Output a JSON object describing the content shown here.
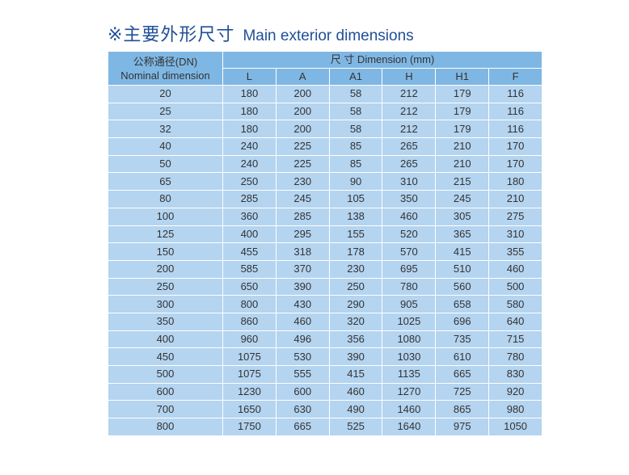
{
  "title": {
    "cn": "※主要外形尺寸",
    "en": "Main exterior dimensions"
  },
  "table": {
    "nominal_header_cn": "公称通径(DN)",
    "nominal_header_en": "Nominal dimension",
    "dimension_header": "尺 寸 Dimension  (mm)",
    "columns": [
      "L",
      "A",
      "A1",
      "H",
      "H1",
      "F"
    ],
    "rows": [
      [
        "20",
        "180",
        "200",
        "58",
        "212",
        "179",
        "116"
      ],
      [
        "25",
        "180",
        "200",
        "58",
        "212",
        "179",
        "116"
      ],
      [
        "32",
        "180",
        "200",
        "58",
        "212",
        "179",
        "116"
      ],
      [
        "40",
        "240",
        "225",
        "85",
        "265",
        "210",
        "170"
      ],
      [
        "50",
        "240",
        "225",
        "85",
        "265",
        "210",
        "170"
      ],
      [
        "65",
        "250",
        "230",
        "90",
        "310",
        "215",
        "180"
      ],
      [
        "80",
        "285",
        "245",
        "105",
        "350",
        "245",
        "210"
      ],
      [
        "100",
        "360",
        "285",
        "138",
        "460",
        "305",
        "275"
      ],
      [
        "125",
        "400",
        "295",
        "155",
        "520",
        "365",
        "310"
      ],
      [
        "150",
        "455",
        "318",
        "178",
        "570",
        "415",
        "355"
      ],
      [
        "200",
        "585",
        "370",
        "230",
        "695",
        "510",
        "460"
      ],
      [
        "250",
        "650",
        "390",
        "250",
        "780",
        "560",
        "500"
      ],
      [
        "300",
        "800",
        "430",
        "290",
        "905",
        "658",
        "580"
      ],
      [
        "350",
        "860",
        "460",
        "320",
        "1025",
        "696",
        "640"
      ],
      [
        "400",
        "960",
        "496",
        "356",
        "1080",
        "735",
        "715"
      ],
      [
        "450",
        "1075",
        "530",
        "390",
        "1030",
        "610",
        "780"
      ],
      [
        "500",
        "1075",
        "555",
        "415",
        "1135",
        "665",
        "830"
      ],
      [
        "600",
        "1230",
        "600",
        "460",
        "1270",
        "725",
        "920"
      ],
      [
        "700",
        "1650",
        "630",
        "490",
        "1460",
        "865",
        "980"
      ],
      [
        "800",
        "1750",
        "665",
        "525",
        "1640",
        "975",
        "1050"
      ]
    ]
  },
  "colors": {
    "header": "#7fb7e4",
    "row": "#b4d4f0",
    "title": "#1f4f98"
  }
}
